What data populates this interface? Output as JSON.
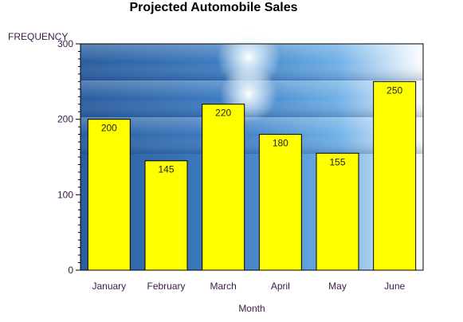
{
  "chart_data": {
    "type": "bar",
    "title": "Projected Automobile Sales",
    "xlabel": "Month",
    "ylabel": "FREQUENCY",
    "categories": [
      "January",
      "February",
      "March",
      "April",
      "May",
      "June"
    ],
    "values": [
      200,
      145,
      220,
      180,
      155,
      250
    ],
    "ylim": [
      0,
      300
    ],
    "yticks": [
      0,
      100,
      200,
      300
    ],
    "grid": false,
    "legend": "none",
    "data_labels": true
  },
  "colors": {
    "bar_fill": "#ffff00",
    "bar_stroke": "#000000",
    "background_gradient": [
      "#2a5d9e",
      "#6fb0e6",
      "#ffffff"
    ],
    "text": "#3a1a4a"
  }
}
